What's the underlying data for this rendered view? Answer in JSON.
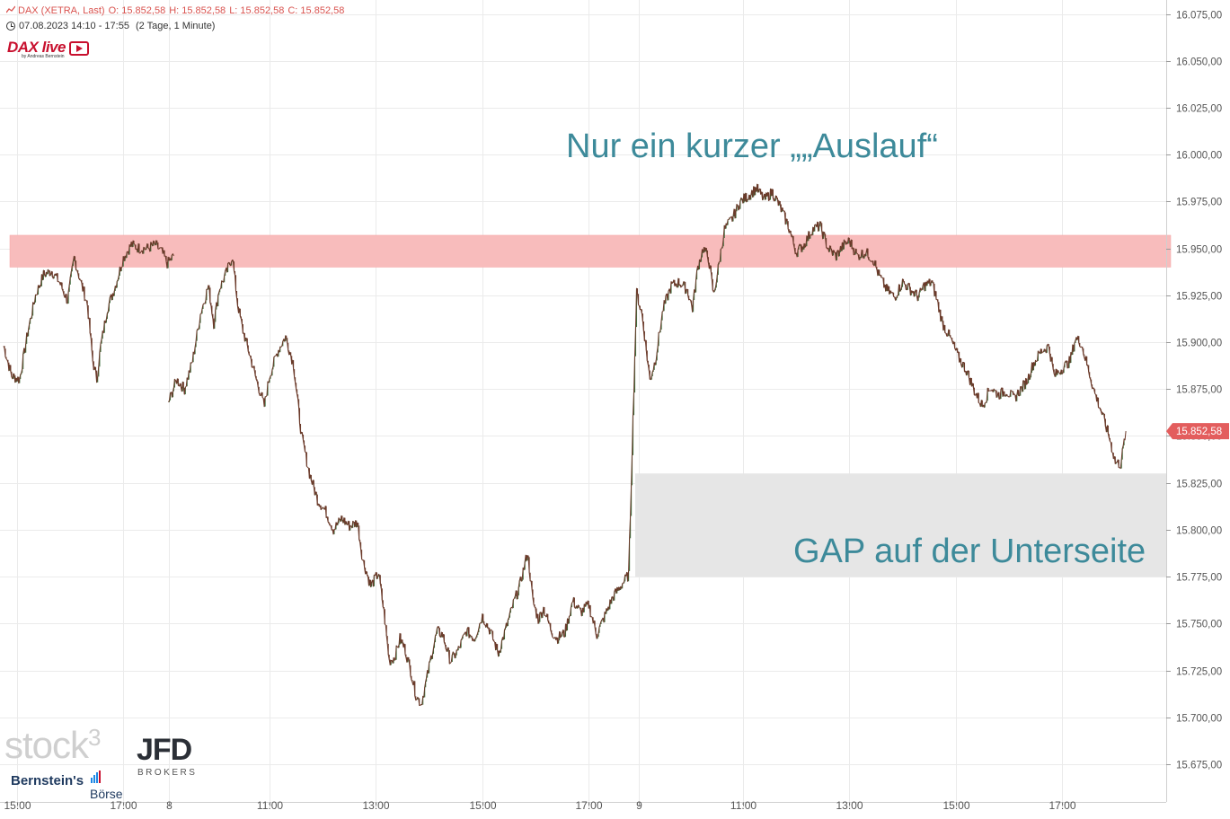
{
  "header": {
    "symbol": "DAX (XETRA, Last)",
    "open": "O: 15.852,58",
    "high": "H: 15.852,58",
    "low": "L: 15.852,58",
    "close": "C: 15.852,58",
    "period": "07.08.2023 14:10 - 17:55",
    "range": "(2 Tage, 1 Minute)"
  },
  "logos": {
    "dax_live": "DAX live",
    "dax_live_sub": "by Andreas Bernstein",
    "stock3": "stock",
    "stock3_sup": "3",
    "jfd": "JFD",
    "brokers": "BROKERS",
    "bernstein": "Bernstein's",
    "boerse": "Börse"
  },
  "annotations": {
    "resistance_label": "Nur ein kurzer „„Auslauf“",
    "gap_label": "GAP auf der Unterseite"
  },
  "colors": {
    "resistance_zone": "#f8bcbc",
    "gap_zone": "#e6e6e6",
    "annotation_text": "#3d8a9a",
    "price_tag": "#e35d5d",
    "candle": "#6b3a2a",
    "candle_up": "#3c6e3c",
    "grid": "#ebebeb",
    "header_red": "#d9534f"
  },
  "chart_data": {
    "type": "line",
    "title": "DAX (XETRA, Last)",
    "y_ticks": [
      "16.075,00",
      "16.050,00",
      "16.025,00",
      "16.000,00",
      "15.975,00",
      "15.950,00",
      "15.925,00",
      "15.900,00",
      "15.875,00",
      "15.850,00",
      "15.825,00",
      "15.800,00",
      "15.775,00",
      "15.750,00",
      "15.725,00",
      "15.700,00",
      "15.675,00"
    ],
    "y_tick_values": [
      16075,
      16050,
      16025,
      16000,
      15975,
      15950,
      15925,
      15900,
      15875,
      15850,
      15825,
      15800,
      15775,
      15750,
      15725,
      15700,
      15675
    ],
    "ylim": [
      15675,
      16080
    ],
    "x_ticks": [
      {
        "label": "15:00",
        "pos": 0.1
      },
      {
        "label": "17:00",
        "pos": 0.9
      },
      {
        "label": "8",
        "pos": 1.24
      },
      {
        "label": "11:00",
        "pos": 2.0
      },
      {
        "label": "13:00",
        "pos": 2.8
      },
      {
        "label": "15:00",
        "pos": 3.6
      },
      {
        "label": "17:00",
        "pos": 4.4
      },
      {
        "label": "9",
        "pos": 4.78
      },
      {
        "label": "11:00",
        "pos": 5.56
      },
      {
        "label": "13:00",
        "pos": 6.36
      },
      {
        "label": "15:00",
        "pos": 7.16
      },
      {
        "label": "17:00",
        "pos": 7.96
      }
    ],
    "last_price_label": "15.852,58",
    "last_price": 15852.58,
    "resistance_zone": [
      15940,
      15957
    ],
    "gap_zone": [
      15775,
      15830
    ],
    "grid": true,
    "series": [
      {
        "points": [
          [
            0.0,
            15898
          ],
          [
            0.06,
            15882
          ],
          [
            0.12,
            15880
          ],
          [
            0.18,
            15905
          ],
          [
            0.24,
            15925
          ],
          [
            0.3,
            15936
          ],
          [
            0.36,
            15938
          ],
          [
            0.42,
            15932
          ],
          [
            0.48,
            15922
          ],
          [
            0.53,
            15945
          ],
          [
            0.58,
            15932
          ],
          [
            0.63,
            15920
          ],
          [
            0.67,
            15890
          ],
          [
            0.7,
            15880
          ],
          [
            0.73,
            15898
          ],
          [
            0.78,
            15918
          ],
          [
            0.84,
            15930
          ],
          [
            0.9,
            15945
          ],
          [
            0.96,
            15952
          ],
          [
            1.02,
            15950
          ],
          [
            1.08,
            15950
          ],
          [
            1.14,
            15952
          ],
          [
            1.19,
            15948
          ],
          [
            1.23,
            15942
          ],
          [
            1.28,
            15946
          ],
          [
            1.24,
            15868
          ],
          [
            1.3,
            15880
          ],
          [
            1.36,
            15875
          ],
          [
            1.42,
            15890
          ],
          [
            1.48,
            15915
          ],
          [
            1.54,
            15930
          ],
          [
            1.58,
            15910
          ],
          [
            1.62,
            15928
          ],
          [
            1.68,
            15938
          ],
          [
            1.72,
            15946
          ],
          [
            1.76,
            15920
          ],
          [
            1.8,
            15906
          ],
          [
            1.84,
            15896
          ],
          [
            1.9,
            15880
          ],
          [
            1.96,
            15866
          ],
          [
            2.0,
            15882
          ],
          [
            2.06,
            15895
          ],
          [
            2.12,
            15903
          ],
          [
            2.18,
            15888
          ],
          [
            2.24,
            15850
          ],
          [
            2.3,
            15830
          ],
          [
            2.36,
            15816
          ],
          [
            2.42,
            15810
          ],
          [
            2.48,
            15800
          ],
          [
            2.54,
            15806
          ],
          [
            2.6,
            15802
          ],
          [
            2.66,
            15804
          ],
          [
            2.7,
            15784
          ],
          [
            2.76,
            15770
          ],
          [
            2.82,
            15777
          ],
          [
            2.86,
            15756
          ],
          [
            2.9,
            15730
          ],
          [
            2.94,
            15732
          ],
          [
            2.98,
            15742
          ],
          [
            3.02,
            15736
          ],
          [
            3.06,
            15725
          ],
          [
            3.1,
            15712
          ],
          [
            3.14,
            15707
          ],
          [
            3.18,
            15720
          ],
          [
            3.22,
            15734
          ],
          [
            3.26,
            15746
          ],
          [
            3.3,
            15744
          ],
          [
            3.36,
            15730
          ],
          [
            3.42,
            15736
          ],
          [
            3.48,
            15746
          ],
          [
            3.54,
            15742
          ],
          [
            3.6,
            15754
          ],
          [
            3.66,
            15746
          ],
          [
            3.72,
            15734
          ],
          [
            3.78,
            15748
          ],
          [
            3.84,
            15762
          ],
          [
            3.88,
            15770
          ],
          [
            3.94,
            15788
          ],
          [
            3.98,
            15762
          ],
          [
            4.02,
            15752
          ],
          [
            4.06,
            15758
          ],
          [
            4.12,
            15746
          ],
          [
            4.16,
            15742
          ],
          [
            4.22,
            15745
          ],
          [
            4.28,
            15762
          ],
          [
            4.34,
            15756
          ],
          [
            4.4,
            15760
          ],
          [
            4.46,
            15744
          ],
          [
            4.52,
            15754
          ],
          [
            4.58,
            15764
          ],
          [
            4.64,
            15770
          ],
          [
            4.7,
            15776
          ],
          [
            4.76,
            15926
          ],
          [
            4.8,
            15915
          ],
          [
            4.86,
            15880
          ],
          [
            4.9,
            15890
          ],
          [
            4.96,
            15918
          ],
          [
            5.02,
            15930
          ],
          [
            5.08,
            15932
          ],
          [
            5.14,
            15928
          ],
          [
            5.18,
            15918
          ],
          [
            5.22,
            15940
          ],
          [
            5.26,
            15950
          ],
          [
            5.3,
            15945
          ],
          [
            5.34,
            15925
          ],
          [
            5.38,
            15942
          ],
          [
            5.42,
            15960
          ],
          [
            5.48,
            15966
          ],
          [
            5.54,
            15975
          ],
          [
            5.6,
            15978
          ],
          [
            5.66,
            15982
          ],
          [
            5.72,
            15976
          ],
          [
            5.78,
            15980
          ],
          [
            5.84,
            15972
          ],
          [
            5.9,
            15962
          ],
          [
            5.96,
            15948
          ],
          [
            6.02,
            15952
          ],
          [
            6.08,
            15960
          ],
          [
            6.14,
            15962
          ],
          [
            6.2,
            15950
          ],
          [
            6.26,
            15946
          ],
          [
            6.32,
            15952
          ],
          [
            6.36,
            15954
          ],
          [
            6.42,
            15946
          ],
          [
            6.48,
            15948
          ],
          [
            6.54,
            15944
          ],
          [
            6.58,
            15936
          ],
          [
            6.64,
            15928
          ],
          [
            6.7,
            15924
          ],
          [
            6.76,
            15932
          ],
          [
            6.82,
            15928
          ],
          [
            6.88,
            15924
          ],
          [
            6.92,
            15930
          ],
          [
            6.98,
            15932
          ],
          [
            7.02,
            15922
          ],
          [
            7.06,
            15910
          ],
          [
            7.12,
            15902
          ],
          [
            7.18,
            15892
          ],
          [
            7.24,
            15885
          ],
          [
            7.3,
            15874
          ],
          [
            7.36,
            15866
          ],
          [
            7.42,
            15876
          ],
          [
            7.48,
            15872
          ],
          [
            7.54,
            15874
          ],
          [
            7.6,
            15870
          ],
          [
            7.64,
            15874
          ],
          [
            7.7,
            15880
          ],
          [
            7.74,
            15888
          ],
          [
            7.8,
            15895
          ],
          [
            7.86,
            15898
          ],
          [
            7.9,
            15882
          ],
          [
            7.96,
            15886
          ],
          [
            8.02,
            15890
          ],
          [
            8.06,
            15902
          ],
          [
            8.1,
            15900
          ],
          [
            8.14,
            15890
          ],
          [
            8.2,
            15874
          ],
          [
            8.26,
            15862
          ],
          [
            8.32,
            15848
          ],
          [
            8.36,
            15836
          ],
          [
            8.4,
            15835
          ],
          [
            8.44,
            15852.58
          ]
        ]
      }
    ]
  }
}
